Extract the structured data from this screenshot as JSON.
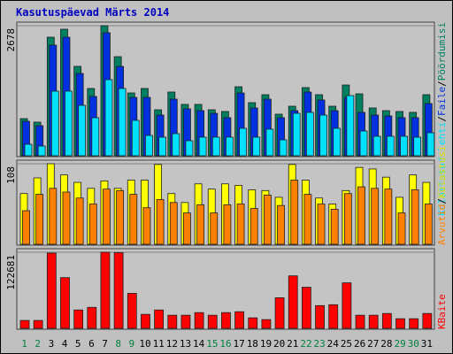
{
  "chart_data": {
    "type": "bar",
    "title": "Kasutuspäevad Märts 2014",
    "separator": "/",
    "categories": [
      "1",
      "2",
      "3",
      "4",
      "5",
      "6",
      "7",
      "8",
      "9",
      "10",
      "11",
      "12",
      "13",
      "14",
      "15",
      "16",
      "17",
      "18",
      "19",
      "20",
      "21",
      "22",
      "23",
      "24",
      "25",
      "26",
      "27",
      "28",
      "29",
      "30",
      "31"
    ],
    "category_colors": [
      "#008040",
      "#008040",
      "#000000",
      "#000000",
      "#000000",
      "#000000",
      "#000000",
      "#008040",
      "#008040",
      "#000000",
      "#000000",
      "#000000",
      "#000000",
      "#000000",
      "#008040",
      "#008040",
      "#000000",
      "#000000",
      "#000000",
      "#000000",
      "#000000",
      "#008040",
      "#008040",
      "#000000",
      "#000000",
      "#000000",
      "#000000",
      "#000000",
      "#008040",
      "#008040",
      "#000000"
    ],
    "panels": [
      {
        "ylim": [
          0,
          2678
        ],
        "yticks": [
          2678
        ],
        "series": [
          {
            "name": "Pöördumisi",
            "color": "#008060",
            "values": [
              765,
              692,
              2441,
              2605,
              1840,
              1385,
              2678,
              2040,
              1293,
              1385,
              947,
              1312,
              1057,
              1057,
              947,
              911,
              1421,
              1093,
              1257,
              856,
              1020,
              1403,
              1257,
              1020,
              1457,
              1275,
              984,
              929,
              911,
              893,
              1257
            ]
          },
          {
            "name": "Faile",
            "color": "#0030e0",
            "values": [
              710,
              619,
              2277,
              2441,
              1694,
              1221,
              2532,
              1840,
              1202,
              1202,
              838,
              1166,
              966,
              929,
              874,
              784,
              1293,
              984,
              1166,
              784,
              929,
              1312,
              1148,
              929,
              1202,
              893,
              838,
              820,
              784,
              784,
              1075
            ]
          },
          {
            "name": "Külastatud lehti",
            "color": "#00e0ff",
            "values": [
              237,
              200,
              1330,
              1330,
              1038,
              783,
              1567,
              1385,
              729,
              419,
              383,
              455,
              310,
              383,
              383,
              383,
              565,
              383,
              547,
              328,
              874,
              893,
              838,
              565,
              1239,
              510,
              401,
              401,
              401,
              383,
              474
            ]
          }
        ]
      },
      {
        "ylim": [
          0,
          108
        ],
        "yticks": [
          108
        ],
        "series": [
          {
            "name": "Külastusi",
            "color": "#ffff00",
            "values": [
              68,
              89,
              108,
              93,
              83,
              75,
              85,
              75,
              86,
              86,
              107,
              68,
              56,
              81,
              74,
              81,
              79,
              73,
              72,
              63,
              107,
              86,
              62,
              54,
              72,
              103,
              101,
              90,
              63,
              93,
              83
            ]
          },
          {
            "name": "Arvutid",
            "color": "#ff8000",
            "values": [
              45,
              67,
              75,
              70,
              62,
              54,
              74,
              72,
              67,
              49,
              60,
              56,
              42,
              53,
              42,
              53,
              54,
              48,
              66,
              52,
              86,
              67,
              54,
              47,
              68,
              77,
              75,
              74,
              42,
              73,
              54
            ]
          }
        ]
      },
      {
        "ylim": [
          0,
          122681
        ],
        "yticks": [
          122681
        ],
        "series": [
          {
            "name": "KBaite",
            "color": "#ff0000",
            "values": [
              12700,
              12700,
              121270,
              81790,
              29610,
              33840,
              122681,
              122000,
              56400,
              22560,
              29610,
              21150,
              21150,
              25380,
              21150,
              25380,
              26790,
              16920,
              14100,
              49350,
              84610,
              66280,
              36660,
              38070,
              73330,
              21150,
              21150,
              23970,
              15510,
              15510,
              23970
            ]
          }
        ]
      }
    ]
  }
}
